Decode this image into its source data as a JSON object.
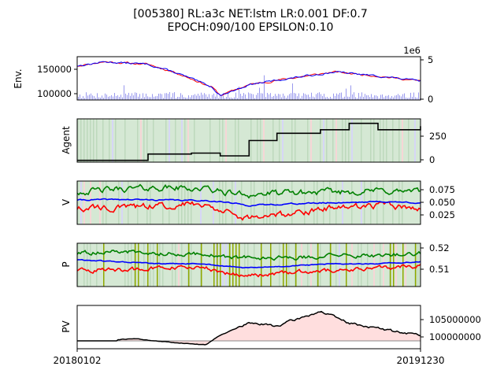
{
  "title_line1": "[005380] RL:a3c NET:lstm LR:0.001 DF:0.7",
  "title_line2": "EPOCH:090/100 EPSILON:0.10",
  "x_start_label": "20180102",
  "x_end_label": "20191230",
  "colors": {
    "red": "#ff0000",
    "blue": "#0000ff",
    "green": "#008000",
    "black": "#000000",
    "olive": "#8fa800",
    "volume": "#9999ee",
    "hold_band": "#d5e8d4",
    "profit_fill": "#ffdede",
    "loss_fill": "#c8c8dd"
  },
  "chart_data": [
    {
      "id": "env",
      "type": "line",
      "ylabel": "Env.",
      "y_tick_labels": [
        "150000",
        "100000"
      ],
      "y2_offset_label": "1e6",
      "y2_tick_labels": [
        "5",
        "0"
      ],
      "ylim": [
        85000,
        170000
      ],
      "x": [
        "20180102",
        "20180301",
        "20180601",
        "20180801",
        "20181015",
        "20181101",
        "20190101",
        "20190401",
        "20190701",
        "20191001",
        "20191230"
      ],
      "series": [
        {
          "values": [
            152000,
            160000,
            155000,
            138000,
            110000,
            94000,
            115000,
            128000,
            140000,
            132000,
            122000
          ]
        }
      ]
    },
    {
      "id": "agent",
      "type": "line",
      "ylabel": "Agent",
      "y_tick_labels": [
        "250",
        "0"
      ],
      "ylim": [
        -20,
        460
      ],
      "x": [
        "20180102",
        "20180401",
        "20180601",
        "20180901",
        "20181101",
        "20190101",
        "20190301",
        "20190601",
        "20190801",
        "20191001",
        "20191230"
      ],
      "series": [
        {
          "values": [
            0,
            0,
            70,
            80,
            50,
            220,
            300,
            340,
            410,
            340,
            380
          ]
        }
      ]
    },
    {
      "id": "v",
      "type": "line",
      "ylabel": "V",
      "y_tick_labels": [
        "0.075",
        "0.050",
        "0.025"
      ],
      "ylim": [
        0.01,
        0.09
      ],
      "x": [
        "20180102",
        "20180401",
        "20180701",
        "20181001",
        "20181101",
        "20190101",
        "20190401",
        "20190701",
        "20191001",
        "20191230"
      ],
      "series": [
        {
          "values": [
            0.04,
            0.04,
            0.045,
            0.048,
            0.035,
            0.02,
            0.03,
            0.04,
            0.045,
            0.04
          ]
        },
        {
          "values": [
            0.055,
            0.056,
            0.055,
            0.054,
            0.052,
            0.045,
            0.048,
            0.05,
            0.052,
            0.05
          ]
        },
        {
          "values": [
            0.07,
            0.075,
            0.078,
            0.076,
            0.07,
            0.065,
            0.068,
            0.07,
            0.072,
            0.07
          ]
        }
      ]
    },
    {
      "id": "p",
      "type": "line",
      "ylabel": "P",
      "y_tick_labels": [
        "0.52",
        "0.51"
      ],
      "ylim": [
        0.502,
        0.523
      ],
      "x": [
        "20180102",
        "20180401",
        "20180701",
        "20181001",
        "20181101",
        "20190101",
        "20190401",
        "20190701",
        "20191001",
        "20191230"
      ],
      "series": [
        {
          "values": [
            0.51,
            0.51,
            0.511,
            0.511,
            0.509,
            0.507,
            0.509,
            0.51,
            0.511,
            0.512
          ]
        },
        {
          "values": [
            0.515,
            0.514,
            0.513,
            0.513,
            0.512,
            0.511,
            0.512,
            0.513,
            0.513,
            0.514
          ]
        },
        {
          "values": [
            0.518,
            0.519,
            0.518,
            0.518,
            0.516,
            0.516,
            0.516,
            0.517,
            0.517,
            0.518
          ]
        }
      ]
    },
    {
      "id": "pv",
      "type": "area",
      "ylabel": "PV",
      "y_tick_labels": [
        "105000000",
        "100000000"
      ],
      "ylim": [
        98000000,
        109000000
      ],
      "x": [
        "20180102",
        "20180301",
        "20180501",
        "20180701",
        "20181001",
        "20181101",
        "20190101",
        "20190301",
        "20190601",
        "20190801",
        "20191101",
        "20191230"
      ],
      "series": [
        {
          "values": [
            100000000,
            100000000,
            100600000,
            99800000,
            99000000,
            101500000,
            104500000,
            103800000,
            107500000,
            104500000,
            102500000,
            101500000
          ]
        }
      ]
    }
  ]
}
